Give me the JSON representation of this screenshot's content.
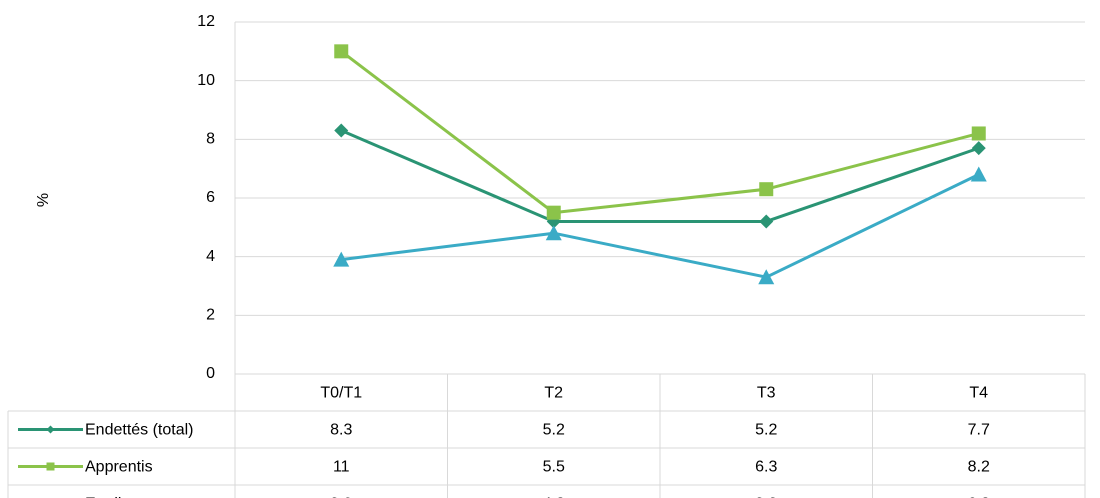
{
  "chart_data": {
    "type": "line",
    "categories": [
      "T0/T1",
      "T2",
      "T3",
      "T4"
    ],
    "ylabel": "%",
    "ylim": [
      0,
      12
    ],
    "yticks": [
      0,
      2,
      4,
      6,
      8,
      10,
      12
    ],
    "grid": true,
    "legend": "data-table",
    "series": [
      {
        "name": "Endettés (total)",
        "values": [
          8.3,
          5.2,
          5.2,
          7.7
        ],
        "color": "#2a9474",
        "marker": "diamond"
      },
      {
        "name": "Apprentis",
        "values": [
          11,
          5.5,
          6.3,
          8.2
        ],
        "color": "#8bc34a",
        "marker": "square"
      },
      {
        "name": "Etudiants",
        "values": [
          3.9,
          4.8,
          3.3,
          6.8
        ],
        "color": "#3aabc6",
        "marker": "triangle"
      }
    ]
  }
}
